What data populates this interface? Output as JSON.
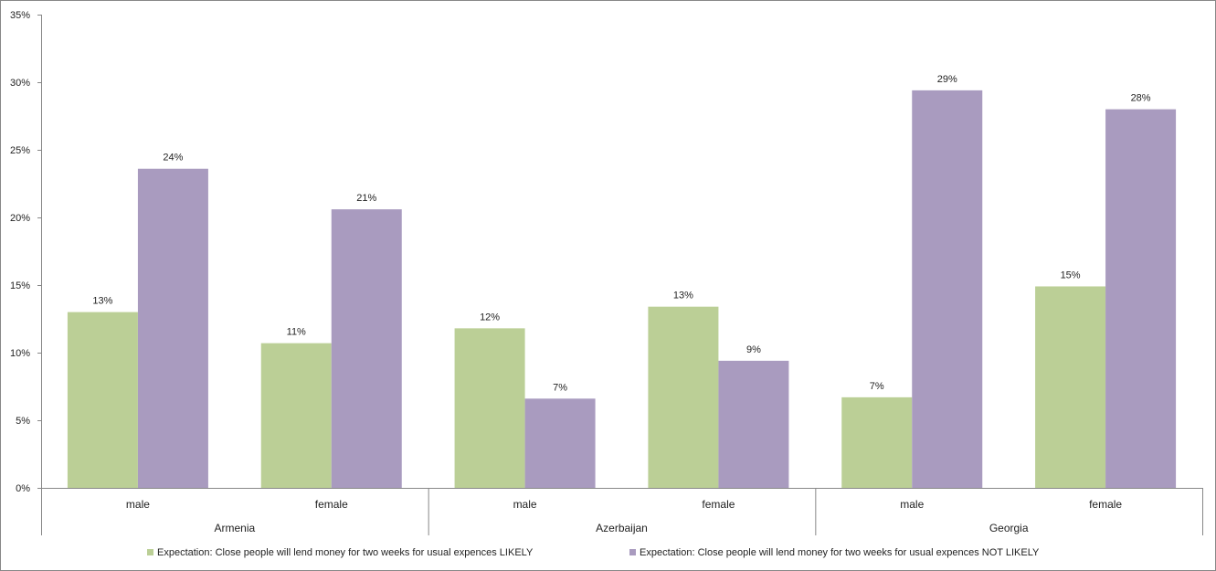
{
  "chart_data": {
    "type": "bar",
    "groups": [
      "Armenia",
      "Azerbaijan",
      "Georgia"
    ],
    "subcategories": [
      "male",
      "female"
    ],
    "categories": [
      {
        "group": "Armenia",
        "label": "male"
      },
      {
        "group": "Armenia",
        "label": "female"
      },
      {
        "group": "Azerbaijan",
        "label": "male"
      },
      {
        "group": "Azerbaijan",
        "label": "female"
      },
      {
        "group": "Georgia",
        "label": "male"
      },
      {
        "group": "Georgia",
        "label": "female"
      }
    ],
    "series": [
      {
        "name": "Expectation: Close people will lend money for two weeks for usual expences LIKELY",
        "color": "#BBCF96",
        "values": [
          13.0,
          10.7,
          11.8,
          13.4,
          6.7,
          14.9
        ],
        "labels": [
          "13%",
          "11%",
          "12%",
          "13%",
          "7%",
          "15%"
        ]
      },
      {
        "name": "Expectation: Close people will lend money for two weeks for usual expences NOT LIKELY",
        "color": "#A99BBF",
        "values": [
          23.6,
          20.6,
          6.6,
          9.4,
          29.4,
          28.0
        ],
        "labels": [
          "24%",
          "21%",
          "7%",
          "9%",
          "29%",
          "28%"
        ]
      }
    ],
    "yticks": [
      "0%",
      "5%",
      "10%",
      "15%",
      "20%",
      "25%",
      "30%",
      "35%"
    ],
    "ylim": [
      0,
      35
    ],
    "grid": false,
    "legend": "bottom",
    "axis_color": "#878787"
  }
}
